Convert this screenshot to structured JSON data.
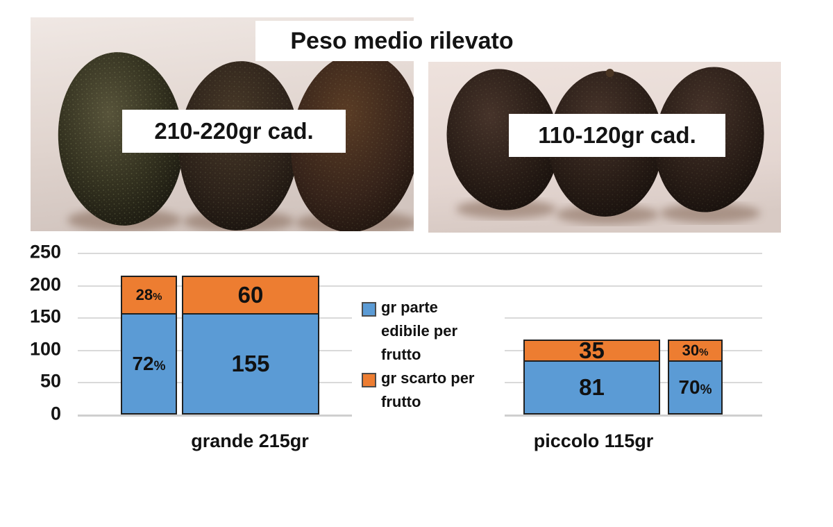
{
  "header": {
    "title": "Peso medio rilevato",
    "photo_left_label": "210-220gr cad.",
    "photo_right_label": "110-120gr cad."
  },
  "chart_data": {
    "type": "bar",
    "stacked": true,
    "ylim": [
      0,
      250
    ],
    "yticks": [
      0,
      50,
      100,
      150,
      200,
      250
    ],
    "grid": true,
    "legend_position": "center-left inside plot",
    "legend": [
      {
        "key": "edibile",
        "label": "gr parte edibile per frutto",
        "color": "#5B9BD5"
      },
      {
        "key": "scarto",
        "label": "gr scarto per frutto",
        "color": "#ED7D31"
      }
    ],
    "groups": [
      {
        "category": "grande 215gr",
        "bars": [
          {
            "style": "percent-labels",
            "segments": [
              {
                "series": "edibile",
                "value": 155,
                "label": "72",
                "suffix": "%"
              },
              {
                "series": "scarto",
                "value": 60,
                "label": "28",
                "suffix": "%"
              }
            ]
          },
          {
            "style": "gram-labels",
            "segments": [
              {
                "series": "edibile",
                "value": 155,
                "label": "155",
                "suffix": ""
              },
              {
                "series": "scarto",
                "value": 60,
                "label": "60",
                "suffix": ""
              }
            ]
          }
        ]
      },
      {
        "category": "piccolo 115gr",
        "bars": [
          {
            "style": "gram-labels",
            "segments": [
              {
                "series": "edibile",
                "value": 81,
                "label": "81",
                "suffix": ""
              },
              {
                "series": "scarto",
                "value": 35,
                "label": "35",
                "suffix": ""
              }
            ]
          },
          {
            "style": "percent-labels",
            "segments": [
              {
                "series": "edibile",
                "value": 81,
                "label": "70",
                "suffix": "%"
              },
              {
                "series": "scarto",
                "value": 35,
                "label": "30",
                "suffix": "%"
              }
            ]
          }
        ]
      }
    ]
  }
}
